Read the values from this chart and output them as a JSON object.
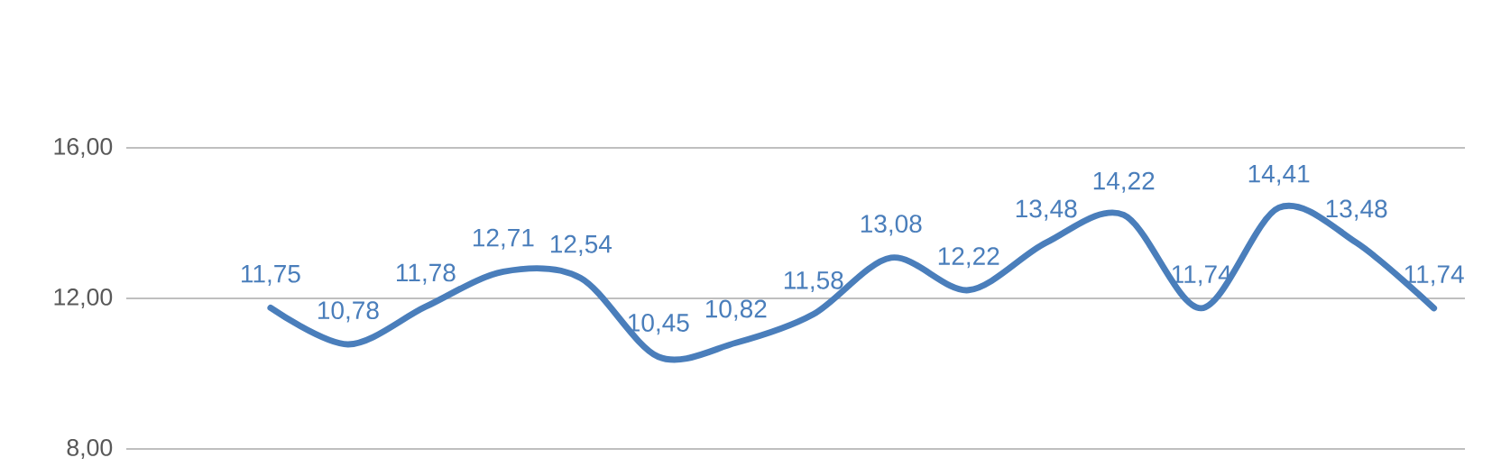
{
  "chart_data": {
    "type": "line",
    "categories": [
      null,
      null,
      null,
      null,
      null,
      null,
      null,
      null,
      null,
      null,
      null,
      null,
      null,
      null,
      null,
      null
    ],
    "series": [
      {
        "color": "#4a7ebb",
        "values": [
          11.75,
          10.78,
          11.78,
          12.71,
          12.54,
          10.45,
          10.82,
          11.58,
          13.08,
          12.22,
          13.48,
          14.22,
          11.74,
          14.41,
          13.48,
          11.74
        ],
        "value_labels": [
          "11,75",
          "10,78",
          "11,78",
          "12,71",
          "12,54",
          "10,45",
          "10,82",
          "11,58",
          "13,08",
          "12,22",
          "13,48",
          "14,22",
          "11,74",
          "14,41",
          "13,48",
          "11,74"
        ]
      }
    ],
    "ylim": [
      8,
      16
    ],
    "yticks": [
      {
        "value": 8,
        "label": "8,00"
      },
      {
        "value": 12,
        "label": "12,00"
      },
      {
        "value": 16,
        "label": "16,00"
      }
    ],
    "grid": "y",
    "marker": "none",
    "line_style": "solid"
  }
}
